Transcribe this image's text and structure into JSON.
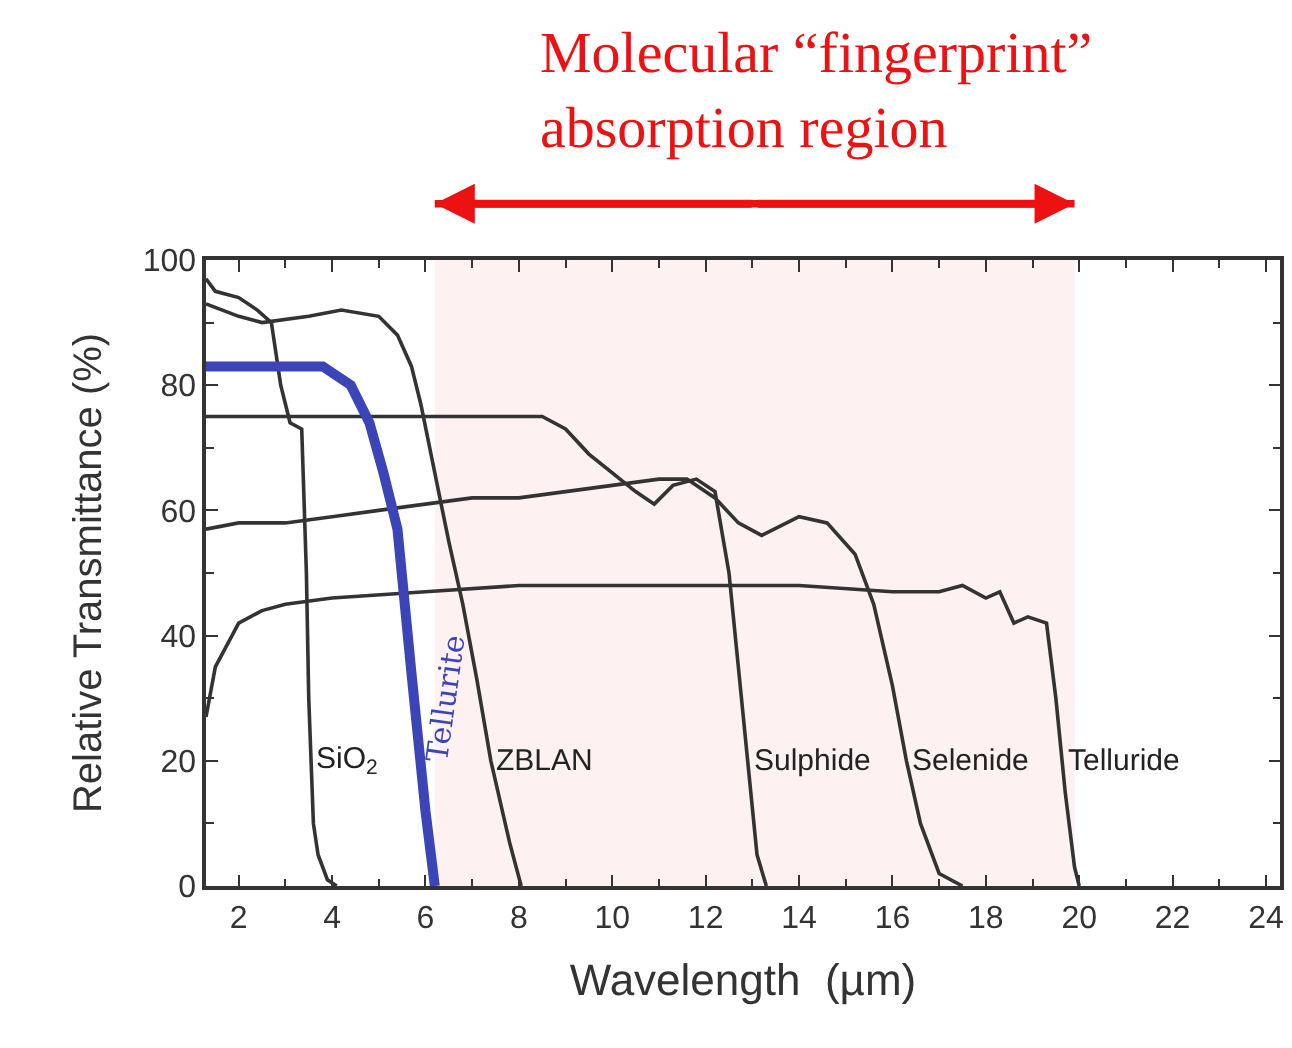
{
  "chart_data": {
    "type": "line",
    "xlabel": "Wavelength  (µm)",
    "ylabel": "Relative Transmittance (%)",
    "xlim": [
      1.3,
      24.3
    ],
    "xticks": [
      2,
      4,
      6,
      8,
      10,
      12,
      14,
      16,
      18,
      20,
      22,
      24
    ],
    "ylim": [
      0,
      100
    ],
    "yticks": [
      0,
      20,
      40,
      60,
      80,
      100
    ],
    "legend": false,
    "marker": "none",
    "line_style": "solid",
    "bands": [
      {
        "axis": "x",
        "from": 6.2,
        "to": 19.9,
        "label": "Molecular “fingerprint”\nabsorption region",
        "color": "#ee1111"
      }
    ],
    "series": [
      {
        "name": "SiO$_{2}$",
        "color": "#333333",
        "x": [
          1.3,
          1.5,
          2.0,
          2.4,
          2.7,
          2.9,
          3.1,
          3.35,
          3.45,
          3.5,
          3.6,
          3.7,
          3.9,
          4.1
        ],
        "values": [
          97,
          95,
          94,
          92,
          90,
          80,
          74,
          73,
          50,
          30,
          10,
          5,
          1,
          0
        ]
      },
      {
        "name": "ZBLAN",
        "color": "#333333",
        "x": [
          1.3,
          2.0,
          2.5,
          3.5,
          4.2,
          5.0,
          5.4,
          5.7,
          5.9,
          6.2,
          6.5,
          6.8,
          7.1,
          7.4,
          7.8,
          8.05
        ],
        "values": [
          93,
          91,
          90,
          91,
          92,
          91,
          88,
          83,
          77,
          66,
          55,
          45,
          33,
          20,
          7,
          0
        ]
      },
      {
        "name": "Sulphide",
        "color": "#333333",
        "x": [
          1.3,
          3.0,
          5.0,
          7.0,
          8.5,
          9.0,
          9.5,
          10.0,
          10.5,
          10.9,
          11.3,
          11.8,
          12.2,
          12.5,
          12.7,
          12.9,
          13.1,
          13.3
        ],
        "values": [
          75,
          75,
          75,
          75,
          75,
          73,
          69,
          66,
          63,
          61,
          64,
          65,
          63,
          50,
          35,
          20,
          5,
          0
        ]
      },
      {
        "name": "Selenide",
        "color": "#333333",
        "x": [
          1.3,
          2.0,
          3.0,
          4.0,
          5.0,
          6.0,
          7.0,
          8.0,
          9.0,
          10.0,
          11.0,
          11.6,
          12.2,
          12.7,
          13.2,
          14.0,
          14.6,
          15.2,
          15.6,
          16.0,
          16.3,
          16.6,
          17.0,
          17.5
        ],
        "values": [
          57,
          58,
          58,
          59,
          60,
          61,
          62,
          62,
          63,
          64,
          65,
          65,
          62,
          58,
          56,
          59,
          58,
          53,
          45,
          32,
          20,
          10,
          2,
          0
        ]
      },
      {
        "name": "Telluride",
        "color": "#333333",
        "x": [
          1.3,
          1.5,
          2.0,
          2.5,
          3.0,
          4.0,
          6.0,
          8.0,
          10.0,
          12.0,
          14.0,
          16.0,
          17.0,
          17.5,
          18.0,
          18.3,
          18.6,
          18.9,
          19.3,
          19.5,
          19.7,
          19.9,
          20.0
        ],
        "values": [
          27,
          35,
          42,
          44,
          45,
          46,
          47,
          48,
          48,
          48,
          48,
          47,
          47,
          48,
          46,
          47,
          42,
          43,
          42,
          30,
          15,
          3,
          0
        ]
      },
      {
        "name": "Tellurite",
        "color": "#3b45b8",
        "x": [
          1.3,
          2.5,
          3.8,
          4.4,
          4.8,
          5.1,
          5.4,
          5.7,
          6.0,
          6.2
        ],
        "values": [
          83,
          83,
          83,
          80,
          74,
          66,
          57,
          34,
          12,
          0
        ]
      }
    ]
  }
}
